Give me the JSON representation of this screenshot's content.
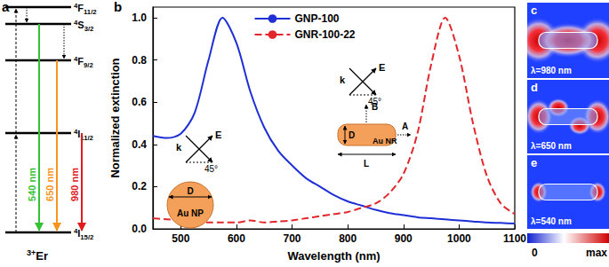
{
  "chart_data": {
    "type": "line",
    "panel_label": "b",
    "x_label": "Wavelength (nm)",
    "y_label": "Normalized extinction",
    "x": [
      450,
      475,
      500,
      525,
      550,
      575,
      600,
      625,
      650,
      675,
      700,
      725,
      750,
      775,
      800,
      825,
      850,
      875,
      900,
      925,
      950,
      975,
      1000,
      1025,
      1050,
      1075,
      1100
    ],
    "series": [
      {
        "name": "GNP-100",
        "color": "#1f2fd6",
        "line_style": "solid",
        "values": [
          0.44,
          0.43,
          0.45,
          0.55,
          0.8,
          1.0,
          0.88,
          0.65,
          0.48,
          0.37,
          0.3,
          0.24,
          0.2,
          0.16,
          0.13,
          0.11,
          0.09,
          0.075,
          0.065,
          0.055,
          0.05,
          0.045,
          0.04,
          0.035,
          0.03,
          0.028,
          0.025
        ]
      },
      {
        "name": "GNR-100-22",
        "color": "#e3262b",
        "line_style": "dashed",
        "values": [
          0.05,
          0.045,
          0.04,
          0.035,
          0.03,
          0.03,
          0.03,
          0.04,
          0.03,
          0.035,
          0.04,
          0.05,
          0.06,
          0.07,
          0.08,
          0.1,
          0.12,
          0.17,
          0.26,
          0.45,
          0.78,
          1.0,
          0.82,
          0.5,
          0.25,
          0.12,
          0.07
        ]
      }
    ],
    "xlim": [
      450,
      1100
    ],
    "xticks": [
      500,
      600,
      700,
      800,
      900,
      1000,
      1100
    ],
    "ylim": [
      0,
      1.05
    ],
    "yticks": [
      {
        "value": 0,
        "label": "0.0"
      },
      {
        "value": 0.2,
        "label": "0.2"
      },
      {
        "value": 0.4,
        "label": "0.4"
      },
      {
        "value": 0.6,
        "label": "0.6"
      },
      {
        "value": 0.8,
        "label": "0.8"
      },
      {
        "value": 1,
        "label": "1.0"
      }
    ],
    "grid": false,
    "legend": "top"
  },
  "energy_diagram": {
    "panel_label": "a",
    "ion": {
      "main": "Er",
      "sup": "3+"
    },
    "levels": [
      {
        "sup": "4",
        "main": "F",
        "sub": "11/2"
      },
      {
        "sup": "4",
        "main": "S",
        "sub": "3/2"
      },
      {
        "sup": "4",
        "main": "F",
        "sub": "9/2"
      },
      {
        "sup": "4",
        "main": "I",
        "sub": "11/2"
      },
      {
        "sup": "4",
        "main": "I",
        "sub": "15/2"
      }
    ],
    "emissions": [
      {
        "label": "540 nm",
        "color": "#33c233"
      },
      {
        "label": "650 nm",
        "color": "#f7941d"
      },
      {
        "label": "980 nm",
        "color": "#e31a1c"
      }
    ]
  },
  "insets": {
    "nanoparticle": {
      "label": "Au NP",
      "size": "D",
      "wavevector": "k",
      "field": "E",
      "angle": "45°"
    },
    "nanorod": {
      "label": "Au NR",
      "width": "D",
      "length": "L",
      "points": [
        "A",
        "B"
      ],
      "wavevector": "k",
      "field": "E",
      "angle": "45°"
    }
  },
  "field_maps": {
    "panels": [
      {
        "panel_label": "c",
        "label": "λ=980 nm"
      },
      {
        "panel_label": "d",
        "label": "λ=650 nm"
      },
      {
        "panel_label": "e",
        "label": "λ=540 nm"
      }
    ],
    "colorbar": {
      "min_label": "0",
      "max_label": "max"
    }
  }
}
